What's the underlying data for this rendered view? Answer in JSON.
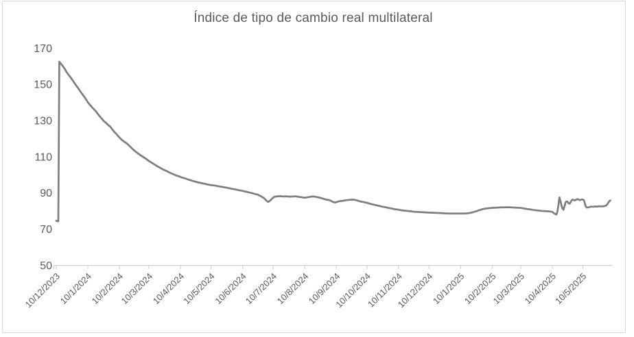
{
  "title": "Índice de tipo de cambio real multilateral",
  "colors": {
    "line": "#7f7f7f",
    "title_text": "#595959",
    "axis_text": "#595959",
    "axis_line": "#cfcfcf",
    "chart_border": "#d9d9d9",
    "background": "#ffffff"
  },
  "chart_data": {
    "type": "line",
    "title": "Índice de tipo de cambio real multilateral",
    "xlabel": "",
    "ylabel": "",
    "grid": false,
    "legend": "none",
    "ylim": [
      50,
      170
    ],
    "yticks": [
      50,
      70,
      90,
      110,
      130,
      150,
      170
    ],
    "x_unit": "days since 10/12/2023 (labels are d/m/yyyy)",
    "x_domain_days": [
      0,
      545
    ],
    "xticks": [
      {
        "day": 0,
        "label": "10/12/2023"
      },
      {
        "day": 31,
        "label": "10/1/2024"
      },
      {
        "day": 62,
        "label": "10/2/2024"
      },
      {
        "day": 91,
        "label": "10/3/2024"
      },
      {
        "day": 122,
        "label": "10/4/2024"
      },
      {
        "day": 152,
        "label": "10/5/2024"
      },
      {
        "day": 183,
        "label": "10/6/2024"
      },
      {
        "day": 213,
        "label": "10/7/2024"
      },
      {
        "day": 244,
        "label": "10/8/2024"
      },
      {
        "day": 275,
        "label": "10/9/2024"
      },
      {
        "day": 305,
        "label": "10/10/2024"
      },
      {
        "day": 336,
        "label": "10/11/2024"
      },
      {
        "day": 366,
        "label": "10/12/2024"
      },
      {
        "day": 397,
        "label": "10/1/2025"
      },
      {
        "day": 428,
        "label": "10/2/2025"
      },
      {
        "day": 456,
        "label": "10/3/2025"
      },
      {
        "day": 487,
        "label": "10/4/2025"
      },
      {
        "day": 517,
        "label": "10/5/2025"
      }
    ],
    "points": [
      [
        0,
        74.5
      ],
      [
        1,
        74.3
      ],
      [
        2,
        74.2
      ],
      [
        3,
        162.4
      ],
      [
        4,
        161.6
      ],
      [
        6,
        160.3
      ],
      [
        8,
        158.7
      ],
      [
        10,
        156.8
      ],
      [
        12,
        155.2
      ],
      [
        14,
        153.8
      ],
      [
        16,
        152.2
      ],
      [
        18,
        150.5
      ],
      [
        20,
        148.9
      ],
      [
        22,
        147.4
      ],
      [
        24,
        145.7
      ],
      [
        26,
        144.2
      ],
      [
        28,
        142.6
      ],
      [
        30,
        140.9
      ],
      [
        31,
        139.9
      ],
      [
        33,
        138.6
      ],
      [
        35,
        137.3
      ],
      [
        37,
        136.1
      ],
      [
        39,
        134.9
      ],
      [
        41,
        133.4
      ],
      [
        43,
        132.0
      ],
      [
        45,
        130.7
      ],
      [
        47,
        129.4
      ],
      [
        49,
        128.5
      ],
      [
        51,
        127.4
      ],
      [
        53,
        126.5
      ],
      [
        55,
        125.0
      ],
      [
        57,
        123.6
      ],
      [
        59,
        122.5
      ],
      [
        62,
        120.5
      ],
      [
        64,
        119.4
      ],
      [
        66,
        118.5
      ],
      [
        68,
        117.7
      ],
      [
        70,
        116.9
      ],
      [
        72,
        115.8
      ],
      [
        75,
        114.1
      ],
      [
        78,
        112.7
      ],
      [
        80,
        111.8
      ],
      [
        82,
        111.0
      ],
      [
        84,
        110.2
      ],
      [
        86,
        109.5
      ],
      [
        88,
        108.8
      ],
      [
        91,
        107.5
      ],
      [
        93,
        106.8
      ],
      [
        95,
        106.1
      ],
      [
        97,
        105.4
      ],
      [
        99,
        104.7
      ],
      [
        101,
        104.1
      ],
      [
        103,
        103.4
      ],
      [
        105,
        102.8
      ],
      [
        107,
        102.3
      ],
      [
        109,
        101.8
      ],
      [
        111,
        101.2
      ],
      [
        113,
        100.7
      ],
      [
        115,
        100.2
      ],
      [
        117,
        99.7
      ],
      [
        119,
        99.3
      ],
      [
        122,
        98.7
      ],
      [
        124,
        98.3
      ],
      [
        126,
        98.0
      ],
      [
        128,
        97.6
      ],
      [
        130,
        97.2
      ],
      [
        132,
        96.9
      ],
      [
        134,
        96.5
      ],
      [
        136,
        96.2
      ],
      [
        138,
        95.9
      ],
      [
        140,
        95.6
      ],
      [
        142,
        95.4
      ],
      [
        144,
        95.1
      ],
      [
        146,
        94.9
      ],
      [
        148,
        94.6
      ],
      [
        150,
        94.4
      ],
      [
        152,
        94.2
      ],
      [
        155,
        94.0
      ],
      [
        158,
        93.7
      ],
      [
        161,
        93.4
      ],
      [
        164,
        93.1
      ],
      [
        167,
        92.8
      ],
      [
        170,
        92.5
      ],
      [
        173,
        92.1
      ],
      [
        176,
        91.8
      ],
      [
        179,
        91.4
      ],
      [
        183,
        91.0
      ],
      [
        186,
        90.6
      ],
      [
        189,
        90.2
      ],
      [
        192,
        89.8
      ],
      [
        195,
        89.3
      ],
      [
        198,
        88.9
      ],
      [
        200,
        88.3
      ],
      [
        202,
        87.7
      ],
      [
        204,
        87.0
      ],
      [
        206,
        85.8
      ],
      [
        208,
        84.9
      ],
      [
        210,
        85.6
      ],
      [
        212,
        86.8
      ],
      [
        214,
        87.7
      ],
      [
        217,
        88.0
      ],
      [
        220,
        88.1
      ],
      [
        223,
        87.9
      ],
      [
        226,
        88.0
      ],
      [
        229,
        87.8
      ],
      [
        232,
        87.9
      ],
      [
        235,
        88.0
      ],
      [
        238,
        87.7
      ],
      [
        241,
        87.5
      ],
      [
        244,
        87.2
      ],
      [
        247,
        87.5
      ],
      [
        250,
        87.8
      ],
      [
        253,
        87.9
      ],
      [
        256,
        87.6
      ],
      [
        259,
        87.2
      ],
      [
        262,
        86.7
      ],
      [
        265,
        86.2
      ],
      [
        268,
        85.9
      ],
      [
        270,
        85.4
      ],
      [
        272,
        84.8
      ],
      [
        274,
        84.6
      ],
      [
        276,
        85.0
      ],
      [
        278,
        85.3
      ],
      [
        281,
        85.5
      ],
      [
        284,
        85.8
      ],
      [
        287,
        86.0
      ],
      [
        290,
        86.2
      ],
      [
        293,
        86.1
      ],
      [
        296,
        85.6
      ],
      [
        299,
        85.1
      ],
      [
        302,
        84.8
      ],
      [
        305,
        84.4
      ],
      [
        308,
        83.9
      ],
      [
        311,
        83.5
      ],
      [
        314,
        83.1
      ],
      [
        317,
        82.7
      ],
      [
        320,
        82.3
      ],
      [
        323,
        82.0
      ],
      [
        326,
        81.6
      ],
      [
        329,
        81.3
      ],
      [
        332,
        80.9
      ],
      [
        336,
        80.6
      ],
      [
        339,
        80.3
      ],
      [
        342,
        80.1
      ],
      [
        345,
        79.9
      ],
      [
        348,
        79.7
      ],
      [
        351,
        79.5
      ],
      [
        354,
        79.4
      ],
      [
        357,
        79.3
      ],
      [
        360,
        79.2
      ],
      [
        363,
        79.1
      ],
      [
        366,
        79.0
      ],
      [
        370,
        78.9
      ],
      [
        374,
        78.8
      ],
      [
        378,
        78.7
      ],
      [
        382,
        78.6
      ],
      [
        386,
        78.5
      ],
      [
        390,
        78.5
      ],
      [
        394,
        78.5
      ],
      [
        397,
        78.5
      ],
      [
        400,
        78.5
      ],
      [
        403,
        78.6
      ],
      [
        406,
        78.8
      ],
      [
        409,
        79.2
      ],
      [
        412,
        79.7
      ],
      [
        415,
        80.3
      ],
      [
        418,
        80.8
      ],
      [
        421,
        81.2
      ],
      [
        424,
        81.4
      ],
      [
        428,
        81.6
      ],
      [
        431,
        81.7
      ],
      [
        434,
        81.8
      ],
      [
        437,
        81.9
      ],
      [
        440,
        81.9
      ],
      [
        443,
        82.0
      ],
      [
        446,
        81.9
      ],
      [
        449,
        81.8
      ],
      [
        452,
        81.7
      ],
      [
        456,
        81.6
      ],
      [
        459,
        81.3
      ],
      [
        462,
        81.0
      ],
      [
        465,
        80.8
      ],
      [
        468,
        80.5
      ],
      [
        471,
        80.3
      ],
      [
        474,
        80.1
      ],
      [
        477,
        79.9
      ],
      [
        480,
        79.8
      ],
      [
        483,
        79.7
      ],
      [
        485,
        79.6
      ],
      [
        487,
        79.4
      ],
      [
        489,
        78.5
      ],
      [
        491,
        77.9
      ],
      [
        492,
        79.5
      ],
      [
        493,
        83.0
      ],
      [
        494,
        87.4
      ],
      [
        495,
        85.5
      ],
      [
        496,
        83.0
      ],
      [
        497,
        81.2
      ],
      [
        498,
        80.6
      ],
      [
        499,
        82.5
      ],
      [
        500,
        84.6
      ],
      [
        501,
        85.2
      ],
      [
        502,
        85.0
      ],
      [
        503,
        84.2
      ],
      [
        504,
        83.9
      ],
      [
        505,
        84.8
      ],
      [
        506,
        85.8
      ],
      [
        507,
        86.2
      ],
      [
        508,
        86.0
      ],
      [
        509,
        85.7
      ],
      [
        510,
        86.0
      ],
      [
        511,
        86.3
      ],
      [
        512,
        86.5
      ],
      [
        513,
        86.1
      ],
      [
        514,
        85.9
      ],
      [
        515,
        86.1
      ],
      [
        516,
        86.3
      ],
      [
        517,
        86.2
      ],
      [
        518,
        85.9
      ],
      [
        519,
        84.0
      ],
      [
        520,
        82.2
      ],
      [
        521,
        81.8
      ],
      [
        523,
        82.0
      ],
      [
        525,
        82.3
      ],
      [
        527,
        82.2
      ],
      [
        529,
        82.4
      ],
      [
        531,
        82.3
      ],
      [
        533,
        82.5
      ],
      [
        535,
        82.4
      ],
      [
        537,
        82.5
      ],
      [
        539,
        82.7
      ],
      [
        540,
        83.0
      ],
      [
        541,
        83.6
      ],
      [
        542,
        84.5
      ],
      [
        543,
        85.3
      ],
      [
        544,
        85.7
      ]
    ]
  }
}
